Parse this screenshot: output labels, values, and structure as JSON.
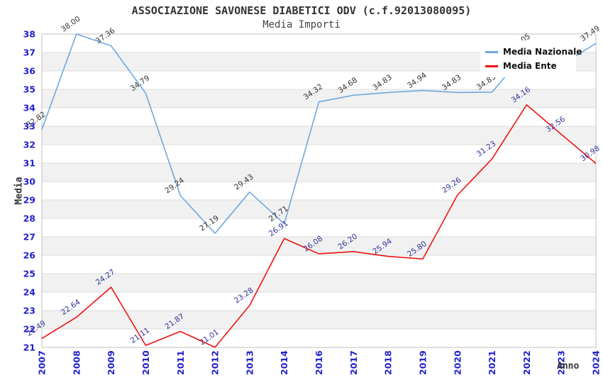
{
  "header": {
    "title": "ASSOCIAZIONE SAVONESE DIABETICI ODV (c.f.92013080095)",
    "subtitle": "Media Importi"
  },
  "legend": {
    "items": [
      {
        "label": "Media Nazionale",
        "color": "#6fa8dc"
      },
      {
        "label": "Media Ente",
        "color": "#ee1111"
      }
    ]
  },
  "axes": {
    "y_title": "Media",
    "x_title": "Anno",
    "y_ticks": [
      21,
      22,
      23,
      24,
      25,
      26,
      27,
      28,
      29,
      30,
      31,
      32,
      33,
      34,
      35,
      36,
      37,
      38
    ],
    "x_ticks": [
      "2007",
      "2008",
      "2009",
      "2010",
      "2011",
      "2012",
      "2013",
      "2014",
      "2016",
      "2017",
      "2018",
      "2019",
      "2020",
      "2021",
      "2022",
      "2023",
      "2024"
    ]
  },
  "chart_data": {
    "type": "line",
    "title": "ASSOCIAZIONE SAVONESE DIABETICI ODV (c.f.92013080095)",
    "subtitle": "Media Importi",
    "xlabel": "Anno",
    "ylabel": "Media",
    "ylim": [
      21,
      38
    ],
    "grid": "horizontal-bands",
    "legend_position": "top-right",
    "categories": [
      "2007",
      "2008",
      "2009",
      "2010",
      "2011",
      "2012",
      "2013",
      "2014",
      "2016",
      "2017",
      "2018",
      "2019",
      "2020",
      "2021",
      "2022",
      "2023",
      "2024"
    ],
    "series": [
      {
        "name": "Media Nazionale",
        "color": "#6fa8dc",
        "label_color": "#333333",
        "values": [
          32.82,
          38.0,
          37.36,
          34.79,
          29.24,
          27.19,
          29.43,
          27.71,
          34.32,
          34.68,
          34.83,
          34.94,
          34.83,
          34.85,
          37.05,
          36.33,
          37.49
        ],
        "labels": [
          "32.82",
          "38.00",
          "37.36",
          "34.79",
          "29.24",
          "27.19",
          "29.43",
          "27.71",
          "34.32",
          "34.68",
          "34.83",
          "34.94",
          "34.83",
          "34.85",
          "37.05",
          "",
          "37.49"
        ]
      },
      {
        "name": "Media Ente",
        "color": "#ee1111",
        "label_color": "#333399",
        "values": [
          21.49,
          22.64,
          24.27,
          21.11,
          21.87,
          21.01,
          23.28,
          26.91,
          26.08,
          26.2,
          25.94,
          25.8,
          29.26,
          31.23,
          34.16,
          32.56,
          30.98
        ],
        "labels": [
          "21.49",
          "22.64",
          "24.27",
          "21.11",
          "21.87",
          "21.01",
          "23.28",
          "26.91",
          "26.08",
          "26.20",
          "25.94",
          "25.80",
          "29.26",
          "31.23",
          "34.16",
          "32.56",
          "30.98"
        ]
      }
    ]
  },
  "colors": {
    "tick_label": "#2222cc",
    "band_gray": "#f1f1f1",
    "gridline": "#dddddd",
    "plot_border": "#c0c0c0",
    "title_text": "#333333"
  }
}
